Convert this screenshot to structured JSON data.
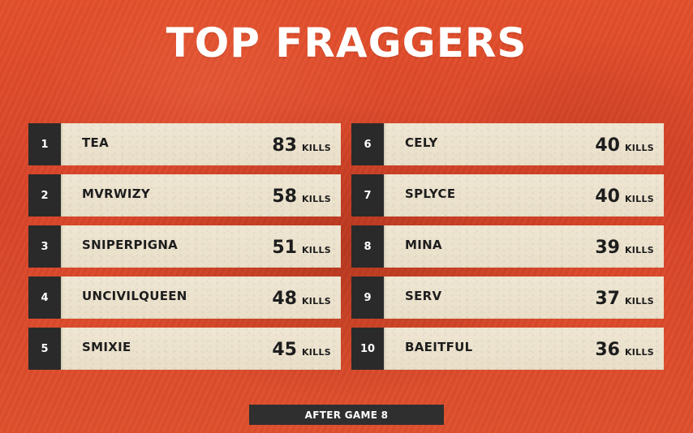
{
  "title": "TOP FRAGGERS",
  "kills_unit": "KILLS",
  "footer_label": "AFTER GAME 8",
  "colors": {
    "background": "#e4502c",
    "plate": "#ede4d0",
    "rank_box": "#2a2a2a",
    "text_dark": "#1d1d1d",
    "title_text": "#ffffff"
  },
  "leaderboard": [
    {
      "rank": "1",
      "name": "TEA",
      "kills": "83"
    },
    {
      "rank": "2",
      "name": "MVRWIZY",
      "kills": "58"
    },
    {
      "rank": "3",
      "name": "SNIPERPIGNA",
      "kills": "51"
    },
    {
      "rank": "4",
      "name": "UNCIVILQUEEN",
      "kills": "48"
    },
    {
      "rank": "5",
      "name": "SMIXIE",
      "kills": "45"
    },
    {
      "rank": "6",
      "name": "CELY",
      "kills": "40"
    },
    {
      "rank": "7",
      "name": "SPLYCE",
      "kills": "40"
    },
    {
      "rank": "8",
      "name": "MINA",
      "kills": "39"
    },
    {
      "rank": "9",
      "name": "SERV",
      "kills": "37"
    },
    {
      "rank": "10",
      "name": "BAEITFUL",
      "kills": "36"
    }
  ]
}
